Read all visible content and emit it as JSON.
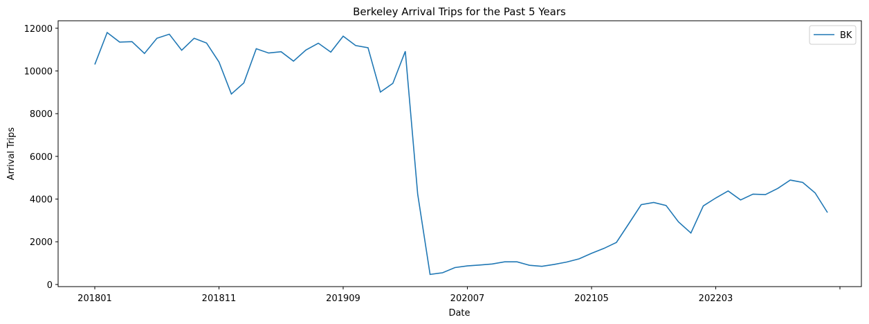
{
  "chart_data": {
    "type": "line",
    "title": "Berkeley Arrival Trips for the Past 5 Years",
    "xlabel": "Date",
    "ylabel": "Arrival Trips",
    "x_tick_labels": [
      "201801",
      "201811",
      "201909",
      "202007",
      "202105",
      "202203",
      ""
    ],
    "y_tick_labels": [
      "0",
      "2000",
      "4000",
      "6000",
      "8000",
      "10000",
      "12000"
    ],
    "ylim": [
      -100,
      12350
    ],
    "legend_position": "top-right",
    "grid": false,
    "series": [
      {
        "name": "BK",
        "color": "#1f77b4",
        "values": [
          10300,
          11800,
          11350,
          11370,
          10820,
          11530,
          11720,
          10970,
          11530,
          11310,
          10420,
          8920,
          9440,
          11040,
          10840,
          10900,
          10460,
          10980,
          11300,
          10880,
          11630,
          11190,
          11090,
          9010,
          9420,
          10920,
          4230,
          470,
          550,
          790,
          870,
          910,
          960,
          1060,
          1060,
          900,
          850,
          940,
          1050,
          1200,
          1460,
          1690,
          1970,
          2850,
          3740,
          3840,
          3700,
          2930,
          2410,
          3680,
          4050,
          4380,
          3960,
          4230,
          4210,
          4500,
          4890,
          4780,
          4290,
          3370
        ]
      }
    ]
  }
}
